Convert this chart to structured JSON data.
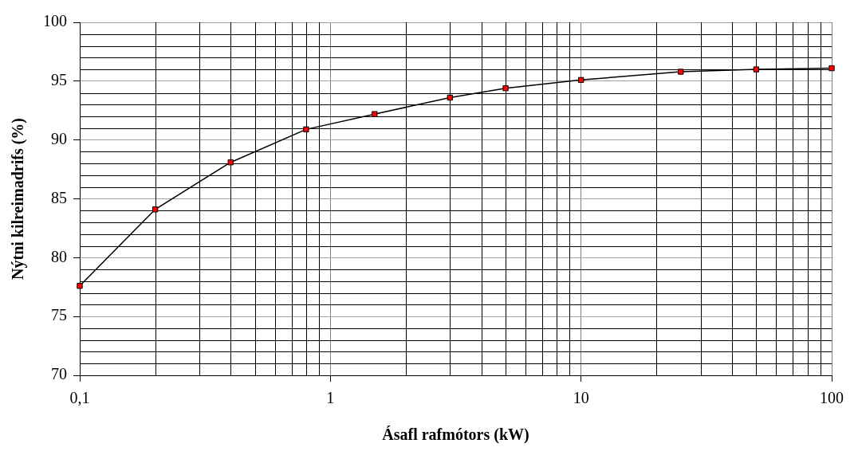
{
  "chart_data": {
    "type": "line",
    "xlabel": "Ásafl rafmótors (kW)",
    "ylabel": "Nýtni kilreimadrifs (%)",
    "x": [
      0.1,
      0.2,
      0.4,
      0.8,
      1.5,
      3,
      5,
      10,
      25,
      50,
      100
    ],
    "series": [
      {
        "color": "#ff0000",
        "values": [
          77.6,
          84.1,
          88.1,
          90.9,
          92.2,
          93.6,
          94.4,
          95.1,
          95.8,
          96.0,
          96.1
        ]
      }
    ],
    "log": "x",
    "xlim": [
      0.1,
      100
    ],
    "xticks": [
      {
        "value": 0.1,
        "label": "0,1"
      },
      1,
      10,
      100
    ],
    "ylim": [
      70,
      100
    ],
    "yticks": [
      70,
      75,
      80,
      85,
      90,
      95,
      100
    ],
    "grid": true,
    "marker": "square",
    "line_style": "solid",
    "legend": false
  }
}
